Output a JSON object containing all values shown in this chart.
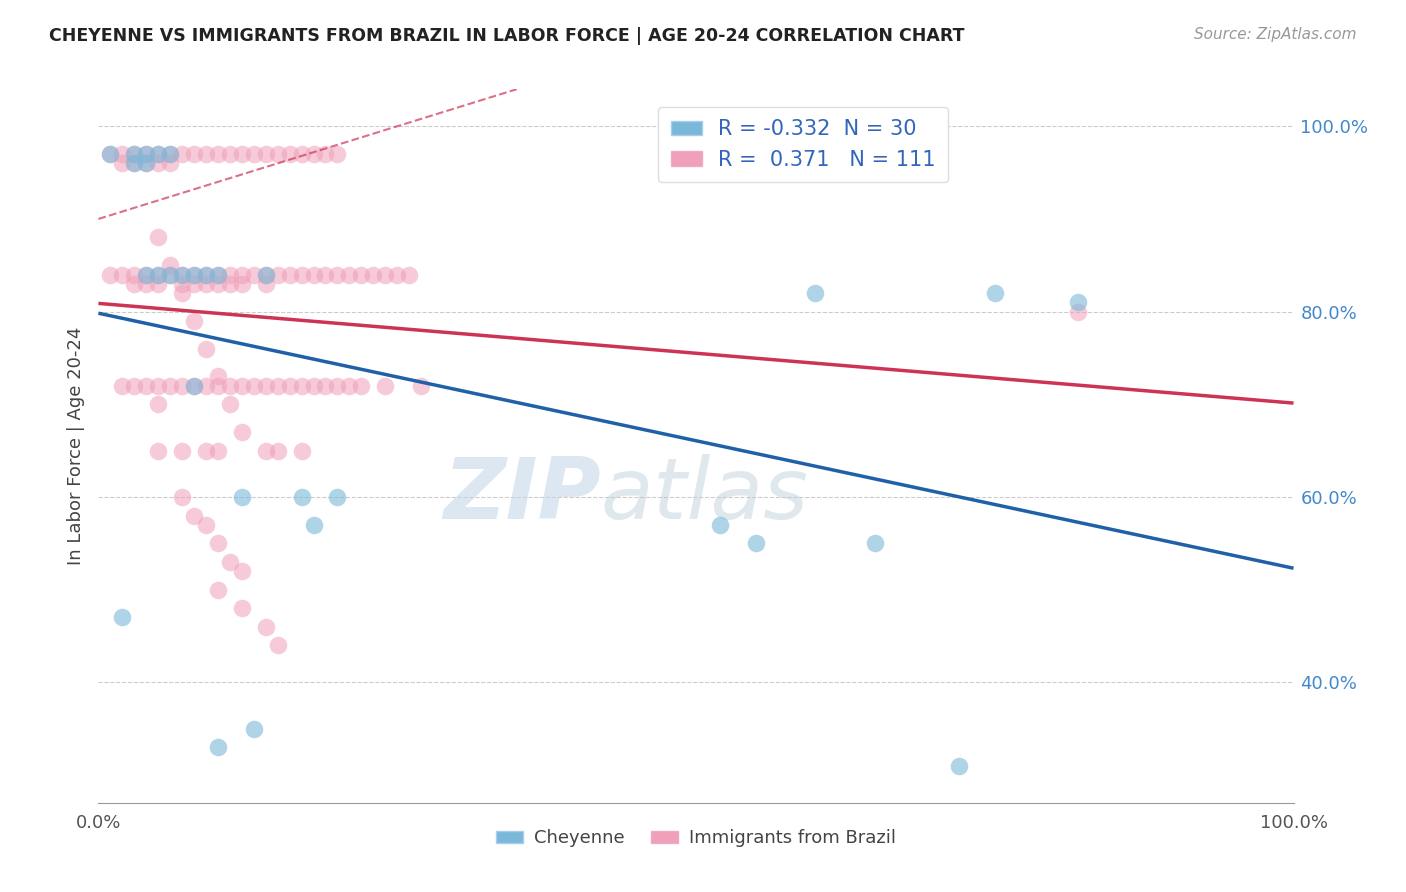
{
  "title": "CHEYENNE VS IMMIGRANTS FROM BRAZIL IN LABOR FORCE | AGE 20-24 CORRELATION CHART",
  "source": "Source: ZipAtlas.com",
  "ylabel": "In Labor Force | Age 20-24",
  "legend_cheyenne": "Cheyenne",
  "legend_brazil": "Immigrants from Brazil",
  "R_cheyenne": -0.332,
  "N_cheyenne": 30,
  "R_brazil": 0.371,
  "N_brazil": 111,
  "xlim": [
    0.0,
    1.0
  ],
  "ylim": [
    0.27,
    1.04
  ],
  "y_ticks": [
    0.4,
    0.6,
    0.8,
    1.0
  ],
  "y_tick_labels": [
    "40.0%",
    "60.0%",
    "80.0%",
    "100.0%"
  ],
  "color_cheyenne": "#7ab8d9",
  "color_brazil": "#f0a0b8",
  "line_color_cheyenne": "#2060a8",
  "line_color_brazil": "#cc3355",
  "background_color": "#ffffff",
  "cheyenne_x": [
    0.01,
    0.02,
    0.03,
    0.03,
    0.04,
    0.04,
    0.04,
    0.05,
    0.05,
    0.06,
    0.06,
    0.07,
    0.08,
    0.08,
    0.09,
    0.1,
    0.12,
    0.14,
    0.17,
    0.18,
    0.2,
    0.52,
    0.55,
    0.6,
    0.65,
    0.72,
    0.75,
    0.82,
    0.1,
    0.13
  ],
  "cheyenne_y": [
    0.97,
    0.47,
    0.97,
    0.96,
    0.97,
    0.96,
    0.84,
    0.97,
    0.84,
    0.97,
    0.84,
    0.84,
    0.84,
    0.72,
    0.84,
    0.84,
    0.6,
    0.84,
    0.6,
    0.57,
    0.6,
    0.57,
    0.55,
    0.82,
    0.55,
    0.31,
    0.82,
    0.81,
    0.33,
    0.35
  ],
  "brazil_x": [
    0.01,
    0.01,
    0.02,
    0.02,
    0.02,
    0.02,
    0.03,
    0.03,
    0.03,
    0.03,
    0.03,
    0.04,
    0.04,
    0.04,
    0.04,
    0.04,
    0.05,
    0.05,
    0.05,
    0.05,
    0.05,
    0.05,
    0.05,
    0.06,
    0.06,
    0.06,
    0.06,
    0.07,
    0.07,
    0.07,
    0.07,
    0.07,
    0.08,
    0.08,
    0.08,
    0.08,
    0.09,
    0.09,
    0.09,
    0.09,
    0.09,
    0.1,
    0.1,
    0.1,
    0.1,
    0.1,
    0.11,
    0.11,
    0.11,
    0.11,
    0.12,
    0.12,
    0.12,
    0.12,
    0.13,
    0.13,
    0.13,
    0.14,
    0.14,
    0.14,
    0.14,
    0.14,
    0.15,
    0.15,
    0.15,
    0.15,
    0.16,
    0.16,
    0.16,
    0.17,
    0.17,
    0.17,
    0.17,
    0.18,
    0.18,
    0.18,
    0.19,
    0.19,
    0.19,
    0.2,
    0.2,
    0.2,
    0.21,
    0.21,
    0.22,
    0.22,
    0.23,
    0.24,
    0.24,
    0.25,
    0.26,
    0.27,
    0.07,
    0.08,
    0.09,
    0.1,
    0.11,
    0.12,
    0.1,
    0.12,
    0.14,
    0.15,
    0.05,
    0.06,
    0.07,
    0.08,
    0.09,
    0.1,
    0.11,
    0.12,
    0.82
  ],
  "brazil_y": [
    0.97,
    0.84,
    0.97,
    0.96,
    0.84,
    0.72,
    0.97,
    0.96,
    0.84,
    0.83,
    0.72,
    0.97,
    0.96,
    0.84,
    0.83,
    0.72,
    0.97,
    0.96,
    0.84,
    0.83,
    0.72,
    0.7,
    0.65,
    0.97,
    0.96,
    0.84,
    0.72,
    0.97,
    0.84,
    0.83,
    0.72,
    0.65,
    0.97,
    0.84,
    0.83,
    0.72,
    0.97,
    0.84,
    0.83,
    0.72,
    0.65,
    0.97,
    0.84,
    0.83,
    0.72,
    0.65,
    0.97,
    0.84,
    0.83,
    0.72,
    0.97,
    0.84,
    0.83,
    0.72,
    0.97,
    0.84,
    0.72,
    0.97,
    0.84,
    0.83,
    0.72,
    0.65,
    0.97,
    0.84,
    0.72,
    0.65,
    0.97,
    0.84,
    0.72,
    0.97,
    0.84,
    0.72,
    0.65,
    0.97,
    0.84,
    0.72,
    0.97,
    0.84,
    0.72,
    0.97,
    0.84,
    0.72,
    0.84,
    0.72,
    0.84,
    0.72,
    0.84,
    0.84,
    0.72,
    0.84,
    0.84,
    0.72,
    0.6,
    0.58,
    0.57,
    0.55,
    0.53,
    0.52,
    0.5,
    0.48,
    0.46,
    0.44,
    0.88,
    0.85,
    0.82,
    0.79,
    0.76,
    0.73,
    0.7,
    0.67,
    0.8
  ]
}
